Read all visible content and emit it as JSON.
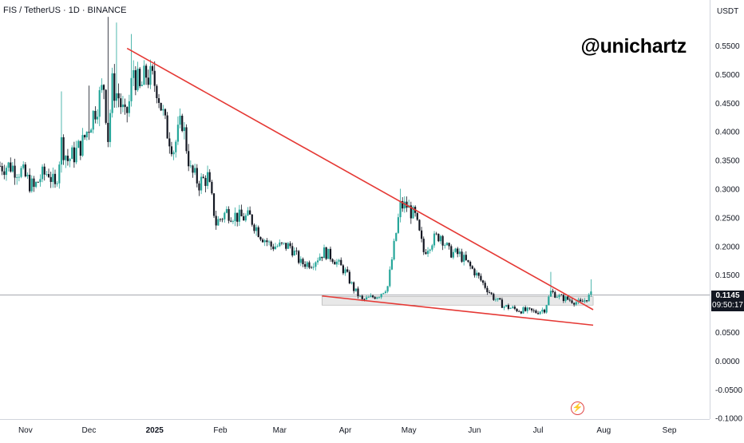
{
  "header": {
    "symbol_title": "FIS / TetherUS · 1D · BINANCE"
  },
  "watermark": "@unichartz",
  "price_axis": {
    "unit": "USDT"
  },
  "last_price": {
    "price": "0.1145",
    "countdown": "09:50:17"
  },
  "icons": {
    "alert": "lightning-bolt-icon"
  },
  "colors": {
    "up": "#26a69a",
    "down": "#131722",
    "trendline": "#e53935",
    "support_zone": "#d5d5d5",
    "price_line": "#9598a1"
  },
  "chart_data": {
    "type": "candlestick",
    "ylim": [
      -0.1,
      0.6
    ],
    "y_ticks": [
      0.55,
      0.5,
      0.45,
      0.4,
      0.35,
      0.3,
      0.25,
      0.2,
      0.15,
      0.1,
      0.05,
      0.0,
      -0.05,
      -0.1
    ],
    "y_tick_labels": [
      "0.5500",
      "0.5000",
      "0.4500",
      "0.4000",
      "0.3500",
      "0.3000",
      "0.2500",
      "0.2000",
      "0.1500",
      "0.1000",
      "0.0500",
      "0.0000",
      "-0.0500",
      "-0.1000"
    ],
    "x_range": [
      "2024-10-20",
      "2025-09-20"
    ],
    "x_ticks": [
      {
        "date": "2024-11-01",
        "label": "Nov"
      },
      {
        "date": "2024-12-01",
        "label": "Dec"
      },
      {
        "date": "2025-01-01",
        "label": "2025"
      },
      {
        "date": "2025-02-01",
        "label": "Feb"
      },
      {
        "date": "2025-03-01",
        "label": "Mar"
      },
      {
        "date": "2025-04-01",
        "label": "Apr"
      },
      {
        "date": "2025-05-01",
        "label": "May"
      },
      {
        "date": "2025-06-01",
        "label": "Jun"
      },
      {
        "date": "2025-07-01",
        "label": "Jul"
      },
      {
        "date": "2025-08-01",
        "label": "Aug"
      },
      {
        "date": "2025-09-01",
        "label": "Sep"
      }
    ],
    "close_path": [
      [
        "2024-10-20",
        0.34
      ],
      [
        "2024-10-25",
        0.34
      ],
      [
        "2024-10-30",
        0.33
      ],
      [
        "2024-11-05",
        0.3
      ],
      [
        "2024-11-08",
        0.32
      ],
      [
        "2024-11-12",
        0.33
      ],
      [
        "2024-11-15",
        0.3
      ],
      [
        "2024-11-18",
        0.38
      ],
      [
        "2024-11-21",
        0.35
      ],
      [
        "2024-11-24",
        0.36
      ],
      [
        "2024-11-28",
        0.38
      ],
      [
        "2024-12-02",
        0.42
      ],
      [
        "2024-12-05",
        0.45
      ],
      [
        "2024-12-08",
        0.48
      ],
      [
        "2024-12-10",
        0.39
      ],
      [
        "2024-12-12",
        0.48
      ],
      [
        "2024-12-15",
        0.46
      ],
      [
        "2024-12-18",
        0.42
      ],
      [
        "2024-12-20",
        0.45
      ],
      [
        "2024-12-22",
        0.51
      ],
      [
        "2024-12-25",
        0.47
      ],
      [
        "2024-12-28",
        0.5
      ],
      [
        "2025-01-02",
        0.48
      ],
      [
        "2025-01-06",
        0.41
      ],
      [
        "2025-01-10",
        0.37
      ],
      [
        "2025-01-14",
        0.42
      ],
      [
        "2025-01-18",
        0.33
      ],
      [
        "2025-01-22",
        0.31
      ],
      [
        "2025-01-26",
        0.32
      ],
      [
        "2025-01-30",
        0.24
      ],
      [
        "2025-02-04",
        0.26
      ],
      [
        "2025-02-10",
        0.25
      ],
      [
        "2025-02-15",
        0.25
      ],
      [
        "2025-02-20",
        0.22
      ],
      [
        "2025-02-25",
        0.2
      ],
      [
        "2025-03-01",
        0.2
      ],
      [
        "2025-03-06",
        0.2
      ],
      [
        "2025-03-11",
        0.17
      ],
      [
        "2025-03-16",
        0.17
      ],
      [
        "2025-03-22",
        0.19
      ],
      [
        "2025-03-26",
        0.18
      ],
      [
        "2025-04-01",
        0.155
      ],
      [
        "2025-04-05",
        0.125
      ],
      [
        "2025-04-09",
        0.105
      ],
      [
        "2025-04-13",
        0.11
      ],
      [
        "2025-04-17",
        0.115
      ],
      [
        "2025-04-21",
        0.13
      ],
      [
        "2025-04-24",
        0.2
      ],
      [
        "2025-04-27",
        0.27
      ],
      [
        "2025-04-30",
        0.27
      ],
      [
        "2025-05-04",
        0.25
      ],
      [
        "2025-05-08",
        0.19
      ],
      [
        "2025-05-12",
        0.21
      ],
      [
        "2025-05-16",
        0.22
      ],
      [
        "2025-05-20",
        0.19
      ],
      [
        "2025-05-25",
        0.185
      ],
      [
        "2025-06-01",
        0.155
      ],
      [
        "2025-06-06",
        0.13
      ],
      [
        "2025-06-10",
        0.11
      ],
      [
        "2025-06-15",
        0.095
      ],
      [
        "2025-06-20",
        0.09
      ],
      [
        "2025-06-25",
        0.087
      ],
      [
        "2025-06-30",
        0.085
      ],
      [
        "2025-07-04",
        0.09
      ],
      [
        "2025-07-07",
        0.12
      ],
      [
        "2025-07-12",
        0.11
      ],
      [
        "2025-07-17",
        0.105
      ],
      [
        "2025-07-21",
        0.1
      ],
      [
        "2025-07-26",
        0.115
      ]
    ],
    "annotations": [
      {
        "type": "trendline",
        "from": [
          "2024-12-19",
          0.545
        ],
        "to": [
          "2025-07-27",
          0.089
        ]
      },
      {
        "type": "trendline",
        "from": [
          "2025-03-21",
          0.113
        ],
        "to": [
          "2025-07-27",
          0.062
        ]
      },
      {
        "type": "zone",
        "x_from": "2025-03-21",
        "x_to": "2025-07-27",
        "y_from": 0.097,
        "y_to": 0.112
      },
      {
        "type": "price_line",
        "y": 0.1145
      }
    ]
  }
}
